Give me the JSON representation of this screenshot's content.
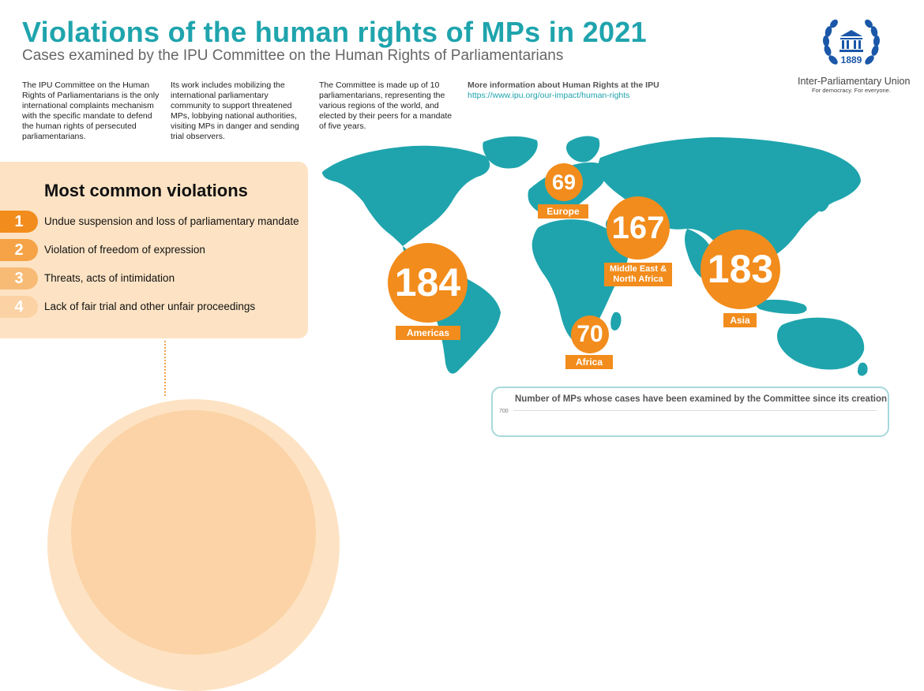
{
  "header": {
    "title": "Violations of the human rights of MPs in 2021",
    "subtitle": "Cases examined by the IPU Committee on the Human Rights of Parliamentarians"
  },
  "intro": {
    "col1": "The IPU Committee on the Human Rights of Parliamentarians is the only international complaints mechanism with the specific mandate to defend the human rights of persecuted parliamentarians.",
    "col2": "Its work includes mobilizing the international parliamentary community to support threatened MPs, lobbying national authorities, visiting MPs in danger and sending trial observers.",
    "col3": "The Committee is made up of 10 parliamentarians, representing the various regions of the world, and elected by their peers for a mandate of five years.",
    "more_info": "More information about Human Rights at the IPU",
    "link": "https://www.ipu.org/our-impact/human-rights"
  },
  "logo": {
    "year": "1889",
    "name": "Inter-Parliamentary Union",
    "tagline": "For democracy. For everyone."
  },
  "violations": {
    "title": "Most common violations",
    "items": [
      {
        "rank": "1",
        "label": "Undue suspension and loss of parliamentary mandate",
        "color": "#f28c1c"
      },
      {
        "rank": "2",
        "label": "Violation of freedom of expression",
        "color": "#f5a346"
      },
      {
        "rank": "3",
        "label": "Threats, acts of intimidation",
        "color": "#f8bb75"
      },
      {
        "rank": "4",
        "label": "Lack of fair trial and other unfair proceedings",
        "color": "#fbd2a4"
      }
    ]
  },
  "regions": [
    {
      "name": "Europe",
      "count": "69"
    },
    {
      "name": "Middle East & North Africa",
      "count": "167"
    },
    {
      "name": "Americas",
      "count": "184"
    },
    {
      "name": "Asia",
      "count": "183"
    },
    {
      "name": "Africa",
      "count": "70"
    }
  ],
  "chart": {
    "title": "Number of MPs whose cases have been examined by the Committee since its creation",
    "tick": "700"
  },
  "colors": {
    "teal": "#1fa4ad",
    "orange": "#f28c1c",
    "peach": "#fde3c4"
  }
}
